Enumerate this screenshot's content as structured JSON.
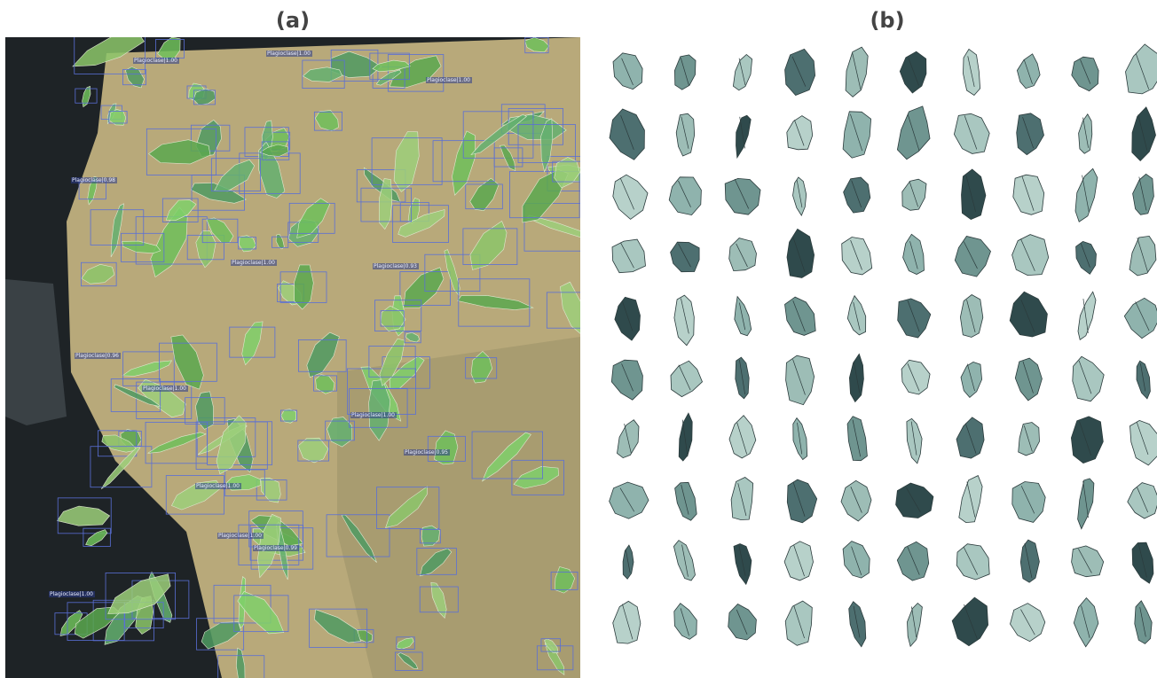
{
  "panels": [
    {
      "label": "(a)",
      "detections": [
        {
          "label": "Plagioclase|1.00"
        },
        {
          "label": "Plagioclase|1.00"
        },
        {
          "label": "Plagioclase|0.98"
        },
        {
          "label": "Plagioclase|1.00"
        },
        {
          "label": "Plagioclase|0.93"
        },
        {
          "label": "Plagioclase|1.00"
        },
        {
          "label": "Plagioclase|0.95"
        },
        {
          "label": "Plagioclase|1.00"
        },
        {
          "label": "Plagioclase|1.00"
        },
        {
          "label": "Plagioclase|0.96"
        },
        {
          "label": "Plagioclase|1.00"
        },
        {
          "label": "Plagioclase|1.00"
        },
        {
          "label": "Plagioclase|1.00"
        },
        {
          "label": "Plagioclase|0.99"
        }
      ]
    },
    {
      "label": "(b)"
    }
  ]
}
